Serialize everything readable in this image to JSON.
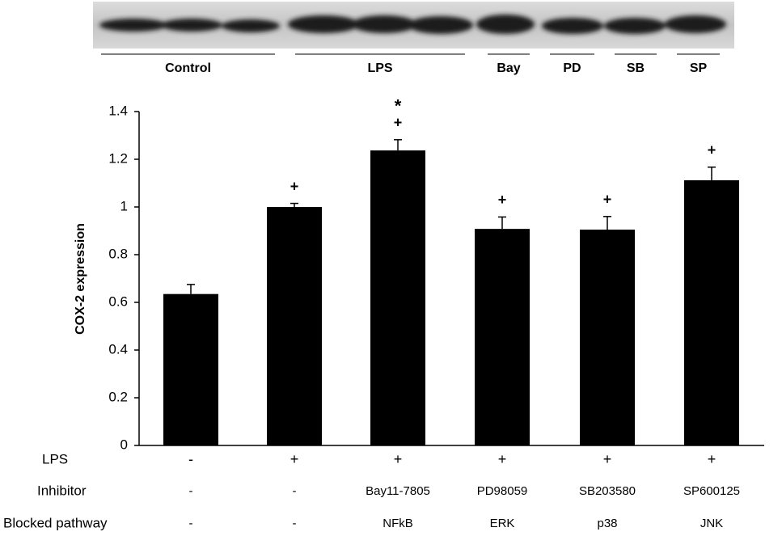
{
  "chart_data": {
    "type": "bar",
    "ylabel": "COX-2 expression",
    "values": [
      0.635,
      1.0,
      1.237,
      0.908,
      0.905,
      1.112
    ],
    "errors": [
      0.04,
      0.015,
      0.045,
      0.05,
      0.055,
      0.055
    ],
    "color": "#000000",
    "ylim": [
      0,
      1.4
    ],
    "yticks": [
      0,
      0.2,
      0.4,
      0.6,
      0.8,
      1,
      1.2,
      1.4
    ],
    "grid": false,
    "plus_markers": [
      null,
      "+",
      "+",
      "+",
      "+",
      "+"
    ],
    "star_markers": [
      null,
      null,
      "*",
      null,
      null,
      null
    ],
    "rows": [
      {
        "label": "LPS",
        "values": [
          "-",
          "+",
          "+",
          "+",
          "+",
          "+"
        ]
      },
      {
        "label": "Inhibitor",
        "values": [
          "-",
          "-",
          "Bay11-7805",
          "PD98059",
          "SB203580",
          "SP600125"
        ]
      },
      {
        "label": "Blocked pathway",
        "values": [
          "-",
          "-",
          "NFkB",
          "ERK",
          "p38",
          "JNK"
        ]
      }
    ],
    "blot_labels": [
      "Control",
      "LPS",
      "Bay",
      "PD",
      "SB",
      "SP"
    ]
  }
}
